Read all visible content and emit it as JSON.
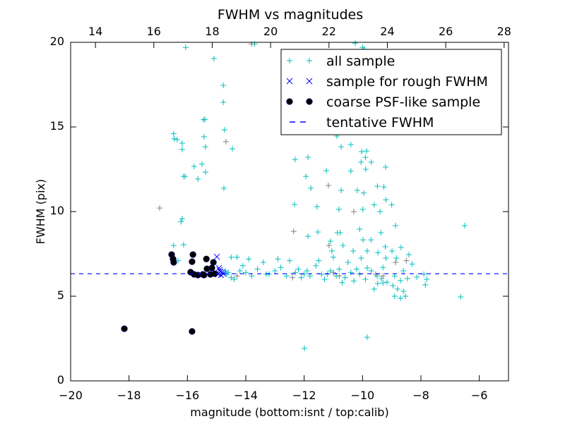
{
  "chart_data": {
    "type": "scatter",
    "title": "FWHM vs magnitudes",
    "xlabel": "magnitude (bottom:isnt / top:calib)",
    "ylabel": "FWHM (pix)",
    "xlim": [
      -20,
      -5
    ],
    "ylim": [
      0,
      20
    ],
    "top_xlim": [
      13.15,
      28.15
    ],
    "x_ticks": [
      "−20",
      "−18",
      "−16",
      "−14",
      "−12",
      "−10",
      "−8",
      "−6"
    ],
    "x_tick_values": [
      -20,
      -18,
      -16,
      -14,
      -12,
      -10,
      -8,
      -6
    ],
    "top_x_ticks": [
      "14",
      "16",
      "18",
      "20",
      "22",
      "24",
      "26",
      "28"
    ],
    "top_x_tick_values": [
      14,
      16,
      18,
      20,
      22,
      24,
      26,
      28
    ],
    "y_ticks": [
      "0",
      "5",
      "10",
      "15",
      "20"
    ],
    "y_tick_values": [
      0,
      5,
      10,
      15,
      20
    ],
    "grid": false,
    "legend_position": "top-right",
    "tentative_fwhm": 6.33,
    "series": [
      {
        "name": "",
        "marker": "plus",
        "color": "#808080",
        "points": [
          [
            -16.95,
            10.21
          ],
          [
            -14.68,
            14.13
          ],
          [
            -12.36,
            8.83
          ],
          [
            -11.17,
            11.54
          ],
          [
            -11.15,
            8.0
          ],
          [
            -10.3,
            10.0
          ],
          [
            -8.87,
            7.0
          ],
          [
            -9.55,
            6.3
          ],
          [
            -9.3,
            6.2
          ],
          [
            -12.4,
            6.1
          ],
          [
            -11.0,
            6.4
          ],
          [
            -14.3,
            6.2
          ],
          [
            -10.8,
            6.2
          ],
          [
            -8.5,
            7.1
          ],
          [
            -13.8,
            19.9
          ]
        ]
      },
      {
        "name": "all sample",
        "marker": "plus",
        "color": "#00bfbf",
        "points": [
          [
            -16.06,
            19.7
          ],
          [
            -15.09,
            19.04
          ],
          [
            -14.77,
            17.46
          ],
          [
            -14.77,
            16.46
          ],
          [
            -15.45,
            15.42
          ],
          [
            -15.4,
            15.45
          ],
          [
            -14.73,
            14.83
          ],
          [
            -16.47,
            14.6
          ],
          [
            -16.45,
            14.3
          ],
          [
            -16.35,
            14.25
          ],
          [
            -16.18,
            14.04
          ],
          [
            -16.18,
            13.67
          ],
          [
            -15.43,
            14.42
          ],
          [
            -15.38,
            13.83
          ],
          [
            -14.46,
            13.71
          ],
          [
            -15.77,
            12.67
          ],
          [
            -15.5,
            12.8
          ],
          [
            -15.38,
            12.33
          ],
          [
            -15.64,
            11.92
          ],
          [
            -16.13,
            12.08
          ],
          [
            -16.08,
            12.08
          ],
          [
            -14.75,
            11.38
          ],
          [
            -16.18,
            9.58
          ],
          [
            -16.22,
            9.4
          ],
          [
            -16.13,
            8.04
          ],
          [
            -16.47,
            8.0
          ],
          [
            -16.32,
            7.1
          ],
          [
            -13.7,
            19.9
          ],
          [
            -10.25,
            19.95
          ],
          [
            -10.0,
            19.7
          ],
          [
            -9.95,
            19.6
          ],
          [
            -11.36,
            14.88
          ],
          [
            -10.88,
            15.67
          ],
          [
            -10.85,
            15.1
          ],
          [
            -10.88,
            14.46
          ],
          [
            -10.73,
            13.83
          ],
          [
            -10.4,
            13.96
          ],
          [
            -10.03,
            13.54
          ],
          [
            -9.86,
            13.58
          ],
          [
            -10.05,
            12.92
          ],
          [
            -9.7,
            12.92
          ],
          [
            -9.21,
            12.63
          ],
          [
            -9.9,
            13.2
          ],
          [
            -9.89,
            12.5
          ],
          [
            -10.4,
            12.4
          ],
          [
            -11.24,
            12.42
          ],
          [
            -11.87,
            13.21
          ],
          [
            -11.94,
            12.08
          ],
          [
            -12.31,
            13.08
          ],
          [
            -11.77,
            11.38
          ],
          [
            -10.73,
            11.25
          ],
          [
            -10.18,
            11.25
          ],
          [
            -9.96,
            11.1
          ],
          [
            -9.49,
            11.5
          ],
          [
            -9.27,
            11.46
          ],
          [
            -12.33,
            10.42
          ],
          [
            -11.56,
            10.29
          ],
          [
            -10.81,
            10.13
          ],
          [
            -9.99,
            10.13
          ],
          [
            -9.6,
            10.4
          ],
          [
            -9.4,
            10.0
          ],
          [
            -9.2,
            10.7
          ],
          [
            -9.0,
            10.4
          ],
          [
            -11.87,
            8.54
          ],
          [
            -11.53,
            8.79
          ],
          [
            -10.86,
            8.75
          ],
          [
            -10.77,
            8.75
          ],
          [
            -10.1,
            8.96
          ],
          [
            -9.98,
            8.33
          ],
          [
            -9.71,
            8.33
          ],
          [
            -9.37,
            8.75
          ],
          [
            -9.22,
            7.92
          ],
          [
            -8.87,
            9.17
          ],
          [
            -11.1,
            8.25
          ],
          [
            -11.05,
            7.67
          ],
          [
            -10.67,
            8.0
          ],
          [
            -10.32,
            7.67
          ],
          [
            -9.84,
            7.67
          ],
          [
            -9.47,
            7.58
          ],
          [
            -8.99,
            7.67
          ],
          [
            -8.68,
            7.88
          ],
          [
            -8.41,
            7.46
          ],
          [
            -9.2,
            7.25
          ],
          [
            -8.84,
            7.25
          ],
          [
            -10.05,
            7.25
          ],
          [
            -9.84,
            6.67
          ],
          [
            -9.35,
            6.04
          ],
          [
            -9.16,
            5.83
          ],
          [
            -8.96,
            5.63
          ],
          [
            -8.7,
            5.92
          ],
          [
            -8.46,
            6.04
          ],
          [
            -8.14,
            6.13
          ],
          [
            -8.8,
            5.42
          ],
          [
            -8.6,
            5.29
          ],
          [
            -8.7,
            4.88
          ],
          [
            -8.53,
            5.0
          ],
          [
            -8.9,
            5.0
          ],
          [
            -7.85,
            5.67
          ],
          [
            -7.8,
            6.0
          ],
          [
            -7.9,
            6.3
          ],
          [
            -9.6,
            5.42
          ],
          [
            -9.48,
            5.75
          ],
          [
            -9.3,
            5.79
          ],
          [
            -9.84,
            2.58
          ],
          [
            -11.99,
            1.92
          ],
          [
            -6.64,
            4.96
          ],
          [
            -6.5,
            9.17
          ],
          [
            -8.6,
            6.5
          ],
          [
            -8.3,
            6.9
          ],
          [
            -8.9,
            6.2
          ],
          [
            -14.5,
            7.3
          ],
          [
            -14.3,
            7.3
          ],
          [
            -14.1,
            6.8
          ],
          [
            -14.0,
            6.4
          ],
          [
            -13.8,
            6.2
          ],
          [
            -13.6,
            6.6
          ],
          [
            -13.4,
            7.0
          ],
          [
            -13.2,
            6.3
          ],
          [
            -13.0,
            6.5
          ],
          [
            -12.8,
            6.7
          ],
          [
            -12.6,
            6.2
          ],
          [
            -12.5,
            7.1
          ],
          [
            -12.3,
            6.4
          ],
          [
            -12.1,
            6.1
          ],
          [
            -11.9,
            6.5
          ],
          [
            -11.8,
            6.2
          ],
          [
            -11.6,
            6.8
          ],
          [
            -11.4,
            6.3
          ],
          [
            -11.3,
            6.0
          ],
          [
            -11.1,
            6.5
          ],
          [
            -10.9,
            6.2
          ],
          [
            -10.8,
            6.6
          ],
          [
            -10.6,
            6.1
          ],
          [
            -10.4,
            6.4
          ],
          [
            -10.3,
            5.9
          ],
          [
            -10.1,
            6.3
          ],
          [
            -9.9,
            6.0
          ],
          [
            -9.7,
            6.5
          ],
          [
            -9.5,
            6.2
          ],
          [
            -9.3,
            6.7
          ],
          [
            -14.6,
            6.4
          ],
          [
            -14.4,
            6.0
          ],
          [
            -13.9,
            7.2
          ],
          [
            -12.9,
            7.2
          ],
          [
            -12.0,
            6.3
          ],
          [
            -11.5,
            7.1
          ],
          [
            -11.0,
            7.3
          ],
          [
            -10.2,
            6.6
          ],
          [
            -14.7,
            6.5
          ],
          [
            -14.65,
            6.3
          ],
          [
            -14.5,
            6.1
          ],
          [
            -14.2,
            6.5
          ],
          [
            -13.3,
            6.3
          ],
          [
            -12.2,
            6.6
          ],
          [
            -11.2,
            6.3
          ],
          [
            -10.7,
            5.8
          ],
          [
            -10.5,
            7.0
          ]
        ]
      },
      {
        "name": "sample for rough FWHM",
        "marker": "x",
        "color": "#0000ff",
        "points": [
          [
            -14.99,
            7.33
          ],
          [
            -14.92,
            6.67
          ],
          [
            -14.87,
            6.46
          ],
          [
            -14.85,
            6.25
          ],
          [
            -14.77,
            6.33
          ],
          [
            -14.95,
            6.3
          ],
          [
            -14.9,
            6.55
          ],
          [
            -14.82,
            6.4
          ]
        ]
      },
      {
        "name": "coarse PSF-like sample",
        "marker": "dot",
        "color": "#000000",
        "points": [
          [
            -18.16,
            3.08
          ],
          [
            -15.84,
            2.92
          ],
          [
            -16.54,
            7.46
          ],
          [
            -16.49,
            7.2
          ],
          [
            -16.47,
            7.0
          ],
          [
            -15.81,
            7.46
          ],
          [
            -15.84,
            7.04
          ],
          [
            -15.35,
            7.2
          ],
          [
            -15.11,
            7.0
          ],
          [
            -15.89,
            6.42
          ],
          [
            -15.77,
            6.29
          ],
          [
            -15.64,
            6.25
          ],
          [
            -15.47,
            6.29
          ],
          [
            -15.33,
            6.62
          ],
          [
            -15.21,
            6.29
          ],
          [
            -15.16,
            6.67
          ],
          [
            -15.06,
            6.33
          ],
          [
            -15.43,
            6.25
          ]
        ]
      },
      {
        "name": "tentative FWHM",
        "marker": "dashed-line",
        "color": "#0000ff"
      }
    ]
  }
}
